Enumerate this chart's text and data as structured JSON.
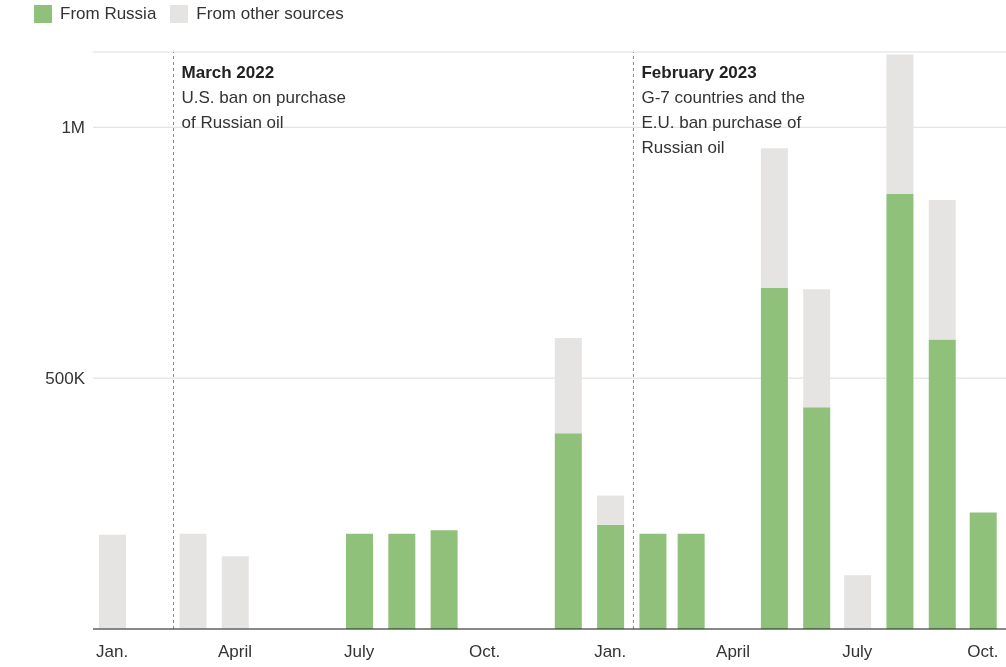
{
  "chart_data": {
    "type": "bar",
    "stacked": true,
    "legend": "top left",
    "grid": "y",
    "x": [
      "2022-01-15",
      "2022-02-15",
      "2022-03-15",
      "2022-04-15",
      "2022-05-15",
      "2022-06-15",
      "2022-07-15",
      "2022-08-15",
      "2022-09-15",
      "2022-10-15",
      "2022-11-15",
      "2022-12-15",
      "2023-01-15",
      "2023-02-15",
      "2023-03-15",
      "2023-04-15",
      "2023-05-15",
      "2023-06-15",
      "2023-07-15",
      "2023-08-15",
      "2023-09-15",
      "2023-10-15"
    ],
    "xlim": [
      "2022-01-01",
      "2023-11-01"
    ],
    "xticks": [
      {
        "value": "2022-01-15",
        "label": "Jan."
      },
      {
        "value": "2022-04-15",
        "label": "April"
      },
      {
        "value": "2022-07-15",
        "label": "July"
      },
      {
        "value": "2022-10-15",
        "label": "Oct."
      },
      {
        "value": "2023-01-15",
        "label": "Jan."
      },
      {
        "value": "2023-04-15",
        "label": "April"
      },
      {
        "value": "2023-07-15",
        "label": "July"
      },
      {
        "value": "2023-10-15",
        "label": "Oct."
      }
    ],
    "ylim": [
      0,
      1150000
    ],
    "yticks": [
      {
        "value": 0,
        "label": null
      },
      {
        "value": 500000,
        "label": "500K"
      },
      {
        "value": 1000000,
        "label": "1M"
      }
    ],
    "series": [
      {
        "name": "From Russia",
        "color": "#8fc17a",
        "values": [
          null,
          null,
          null,
          null,
          null,
          null,
          190000,
          190000,
          197000,
          null,
          null,
          390000,
          208000,
          190000,
          190000,
          null,
          680000,
          442000,
          null,
          867000,
          577000,
          232000
        ]
      },
      {
        "name": "From other sources",
        "color": "#e6e3e3",
        "values": [
          188000,
          null,
          190000,
          145000,
          null,
          null,
          null,
          null,
          null,
          null,
          null,
          190000,
          58000,
          null,
          null,
          null,
          278000,
          235000,
          107000,
          278000,
          278000,
          null
        ]
      }
    ],
    "ref_lines": [
      {
        "axis": "x",
        "value": "2022-03-01",
        "label": "March 2022",
        "line_style": "dashed",
        "color": "#888888"
      },
      {
        "axis": "x",
        "value": "2023-02-01",
        "label": "February 2023",
        "line_style": "dashed",
        "color": "#888888"
      }
    ],
    "annotations": [
      {
        "text": "U.S. ban on purchase of Russian oil",
        "x": "2022-03-01",
        "y": 1060000
      },
      {
        "text": "G-7 countries and the E.U. ban purchase of Russian oil",
        "x": "2023-02-01",
        "y": 1060000
      }
    ]
  }
}
